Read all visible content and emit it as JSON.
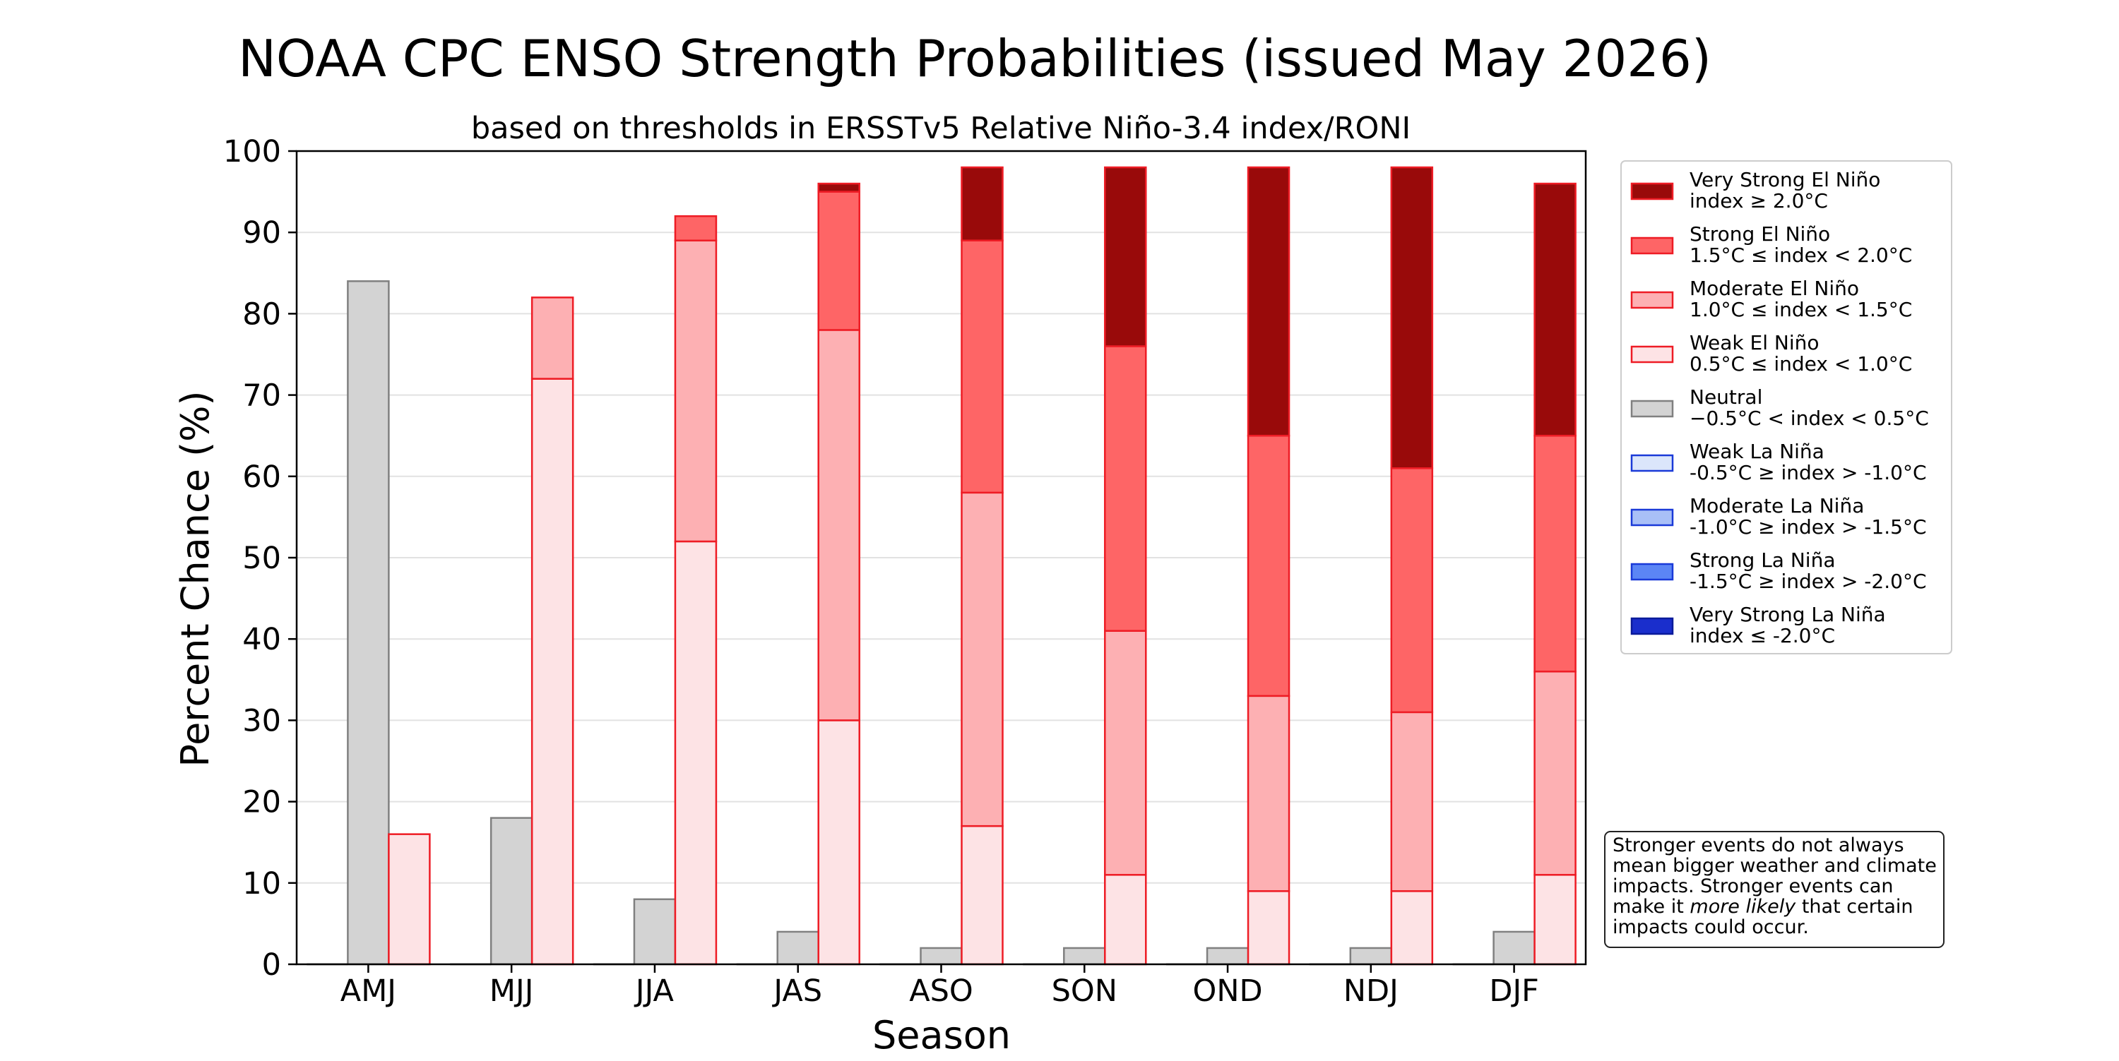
{
  "chart_data": {
    "type": "bar",
    "title": "NOAA CPC ENSO Strength Probabilities (issued May 2026)",
    "subtitle": "based on thresholds in ERSSTv5 Relative Niño-3.4 index/RONI",
    "xlabel": "Season",
    "ylabel": "Percent Chance (%)",
    "ylim": [
      0,
      100
    ],
    "yticks": [
      0,
      10,
      20,
      30,
      40,
      50,
      60,
      70,
      80,
      90,
      100
    ],
    "grid": true,
    "legend_position": "right",
    "categories": [
      "AMJ",
      "MJJ",
      "JJA",
      "JAS",
      "ASO",
      "SON",
      "OND",
      "NDJ",
      "DJF"
    ],
    "series": [
      {
        "name": "Very Strong La Niña",
        "range": "index ≤ -2.0°C",
        "group": "la-nina",
        "color": "#1a2ecc",
        "edge": "#0a1a9a",
        "values": [
          0,
          0,
          0,
          0,
          0,
          0,
          0,
          0,
          0
        ]
      },
      {
        "name": "Strong La Niña",
        "range": "-1.5°C ≥ index > -2.0°C",
        "group": "la-nina",
        "color": "#5b85f5",
        "edge": "#1a3ad8",
        "values": [
          0,
          0,
          0,
          0,
          0,
          0,
          0,
          0,
          0
        ]
      },
      {
        "name": "Moderate La Niña",
        "range": "-1.0°C ≥ index > -1.5°C",
        "group": "la-nina",
        "color": "#a9c0f7",
        "edge": "#1a3ad8",
        "values": [
          0,
          0,
          0,
          0,
          0,
          0,
          0,
          0,
          0
        ]
      },
      {
        "name": "Weak La Niña",
        "range": "-0.5°C ≥ index > -1.0°C",
        "group": "la-nina",
        "color": "#dbe6fb",
        "edge": "#1a3ad8",
        "values": [
          0,
          0,
          0,
          0,
          0,
          0,
          0,
          0,
          0
        ]
      },
      {
        "name": "Neutral",
        "range": "−0.5°C < index < 0.5°C",
        "group": "neutral",
        "color": "#d3d3d3",
        "edge": "#808080",
        "values": [
          84,
          18,
          8,
          4,
          2,
          2,
          2,
          2,
          4
        ]
      },
      {
        "name": "Weak El Niño",
        "range": "0.5°C ≤ index < 1.0°C",
        "group": "el-nino",
        "color": "#fde3e5",
        "edge": "#ee1c25",
        "values": [
          16,
          72,
          52,
          30,
          17,
          11,
          9,
          9,
          11
        ]
      },
      {
        "name": "Moderate El Niño",
        "range": "1.0°C ≤ index < 1.5°C",
        "group": "el-nino",
        "color": "#fdb0b3",
        "edge": "#ee1c25",
        "values": [
          0,
          10,
          37,
          48,
          41,
          30,
          24,
          22,
          25
        ]
      },
      {
        "name": "Strong El Niño",
        "range": "1.5°C ≤ index < 2.0°C",
        "group": "el-nino",
        "color": "#fe6566",
        "edge": "#ee1c25",
        "values": [
          0,
          0,
          3,
          17,
          31,
          35,
          32,
          30,
          29
        ]
      },
      {
        "name": "Very Strong El Niño",
        "range": "index ≥ 2.0°C",
        "group": "el-nino",
        "color": "#990a0a",
        "edge": "#ee1c25",
        "values": [
          0,
          0,
          0,
          1,
          9,
          22,
          33,
          37,
          31
        ]
      }
    ],
    "legend_order": [
      "Very Strong El Niño",
      "Strong El Niño",
      "Moderate El Niño",
      "Weak El Niño",
      "Neutral",
      "Weak La Niña",
      "Moderate La Niña",
      "Strong La Niña",
      "Very Strong La Niña"
    ],
    "note": {
      "lines": [
        "Stronger events do not always",
        "mean bigger weather and climate",
        "impacts. Stronger events can"
      ],
      "line4_before": "make it ",
      "line4_italic": "more likely",
      "line4_after": " that certain",
      "line5": "impacts could occur."
    }
  }
}
